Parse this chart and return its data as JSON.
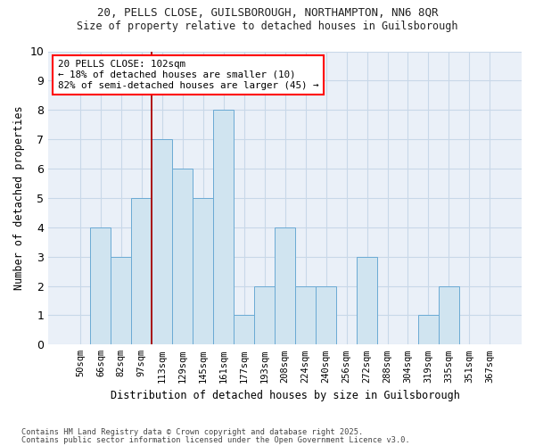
{
  "title1": "20, PELLS CLOSE, GUILSBOROUGH, NORTHAMPTON, NN6 8QR",
  "title2": "Size of property relative to detached houses in Guilsborough",
  "xlabel": "Distribution of detached houses by size in Guilsborough",
  "ylabel": "Number of detached properties",
  "categories": [
    "50sqm",
    "66sqm",
    "82sqm",
    "97sqm",
    "113sqm",
    "129sqm",
    "145sqm",
    "161sqm",
    "177sqm",
    "193sqm",
    "208sqm",
    "224sqm",
    "240sqm",
    "256sqm",
    "272sqm",
    "288sqm",
    "304sqm",
    "319sqm",
    "335sqm",
    "351sqm",
    "367sqm"
  ],
  "values": [
    0,
    4,
    3,
    5,
    7,
    6,
    5,
    8,
    1,
    2,
    4,
    2,
    2,
    0,
    3,
    0,
    0,
    1,
    2,
    0,
    0
  ],
  "bar_color": "#d0e4f0",
  "bar_edge_color": "#6aaad4",
  "grid_color": "#c8d8e8",
  "vline_x": 3.5,
  "vline_color": "#aa0000",
  "annotation_text": "20 PELLS CLOSE: 102sqm\n← 18% of detached houses are smaller (10)\n82% of semi-detached houses are larger (45) →",
  "ylim": [
    0,
    10
  ],
  "yticks": [
    0,
    1,
    2,
    3,
    4,
    5,
    6,
    7,
    8,
    9,
    10
  ],
  "footnote1": "Contains HM Land Registry data © Crown copyright and database right 2025.",
  "footnote2": "Contains public sector information licensed under the Open Government Licence v3.0.",
  "bg_color": "#ffffff",
  "plot_bg_color": "#eaf0f8"
}
